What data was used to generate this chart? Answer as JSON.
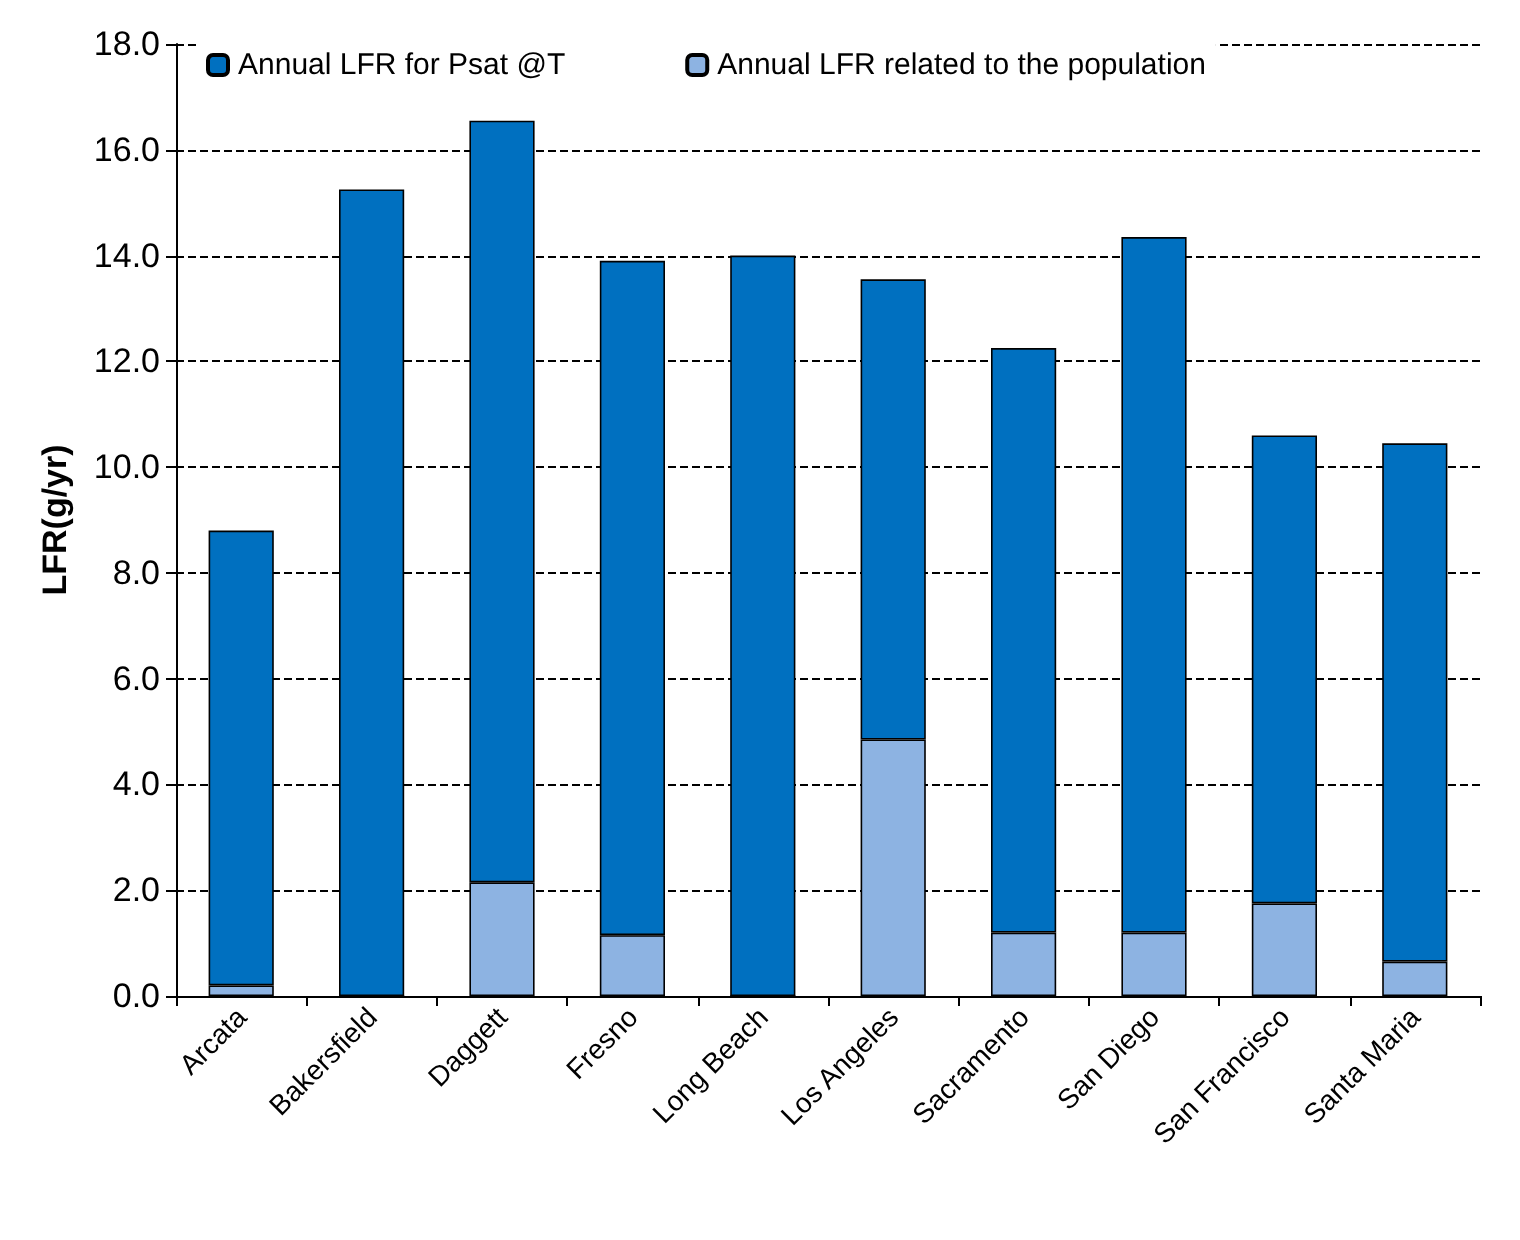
{
  "chart_data": {
    "type": "bar",
    "ylabel": "LFR(g/yr)",
    "stacked": true,
    "legend": "top",
    "grid": "y",
    "categories": [
      "Arcata",
      "Bakersfield",
      "Daggett",
      "Fresno",
      "Long Beach",
      "Los Angeles",
      "Sacramento",
      "San Diego",
      "San Francisco",
      "Santa Maria"
    ],
    "series": [
      {
        "name": "Annual LFR related to the population",
        "color": "#8db3e2",
        "values": [
          0.2,
          0,
          2.15,
          1.15,
          0,
          4.85,
          1.2,
          1.2,
          1.75,
          0.65
        ]
      },
      {
        "name": "Annual LFR for Psat @T",
        "color": "#0070c0",
        "values": [
          8.6,
          15.25,
          14.4,
          12.75,
          14.0,
          8.7,
          11.05,
          13.15,
          8.85,
          9.8
        ]
      }
    ],
    "ylim": [
      0,
      18
    ],
    "yticks": [
      {
        "value": 0,
        "label": "0.0"
      },
      {
        "value": 2,
        "label": "2.0"
      },
      {
        "value": 4,
        "label": "4.0"
      },
      {
        "value": 6,
        "label": "6.0"
      },
      {
        "value": 8,
        "label": "8.0"
      },
      {
        "value": 10,
        "label": "10.0"
      },
      {
        "value": 12,
        "label": "12.0"
      },
      {
        "value": 14,
        "label": "14.0"
      },
      {
        "value": 16,
        "label": "16.0"
      },
      {
        "value": 18,
        "label": "18.0"
      }
    ]
  }
}
